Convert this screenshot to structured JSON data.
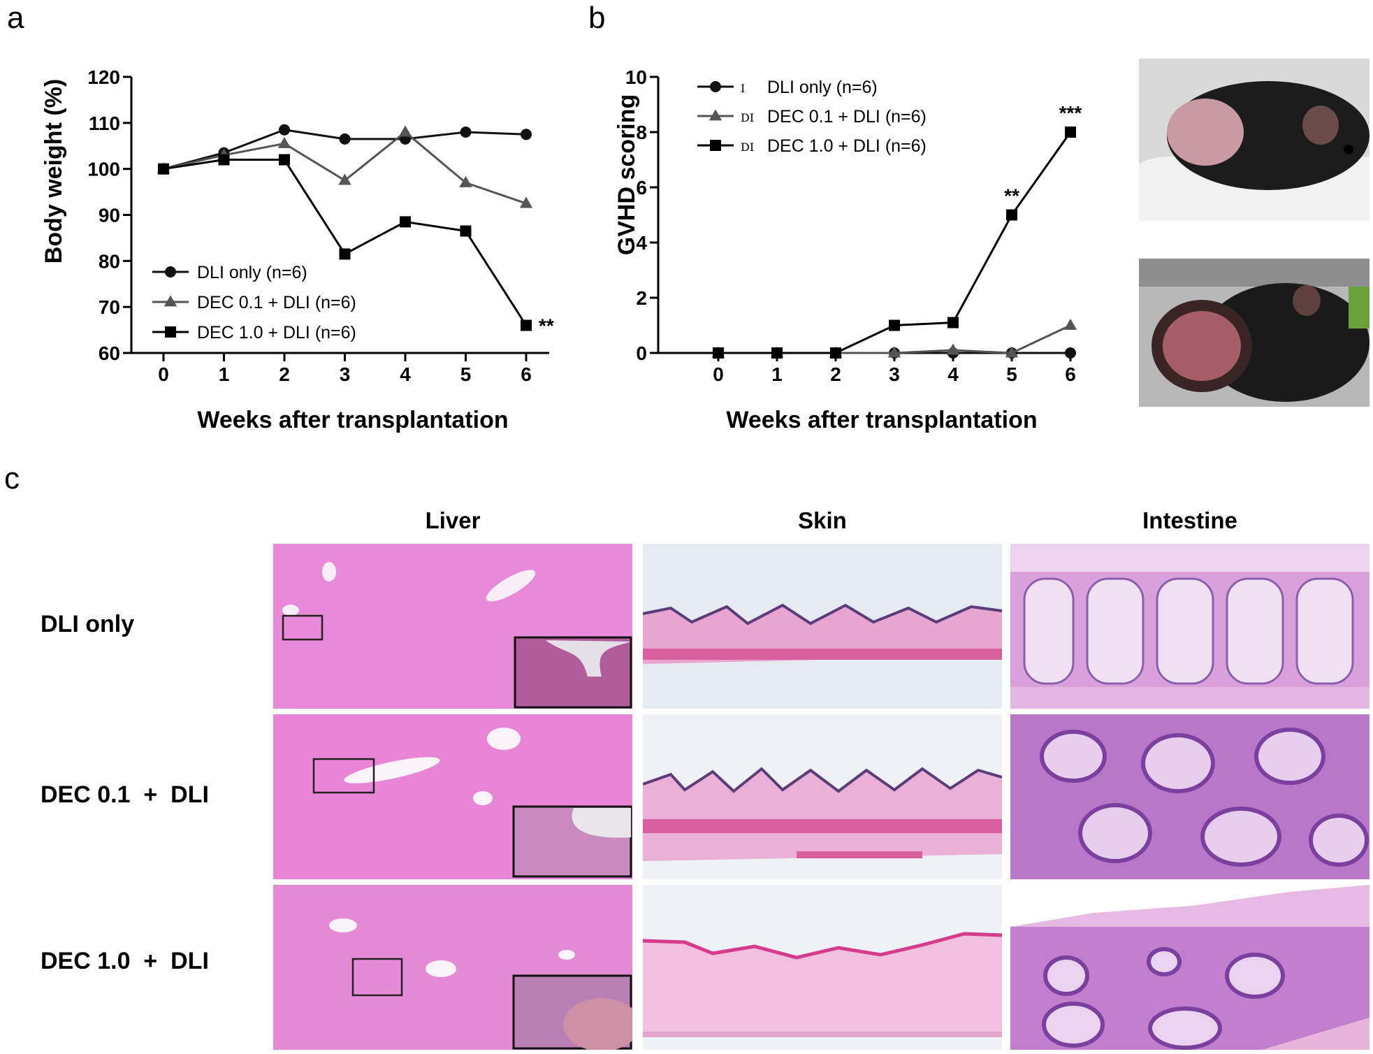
{
  "figure": {
    "panel_a_letter": "a",
    "panel_b_letter": "b",
    "panel_c_letter": "c"
  },
  "colors": {
    "dli_only": "#111111",
    "dec01": "#555555",
    "dec10": "#000000",
    "he_liver": "#e77fd6",
    "he_skin_bg": "#e6ebf2",
    "he_intestine": "#cc8fd2"
  },
  "chart_data": [
    {
      "type": "line",
      "panel": "a",
      "xlabel": "Weeks after transplantation",
      "ylabel": "Body weight (%)",
      "x": [
        0,
        1,
        2,
        3,
        4,
        5,
        6
      ],
      "ylim": [
        60,
        120
      ],
      "yticks": [
        60,
        70,
        80,
        90,
        100,
        110,
        120
      ],
      "grid": false,
      "legend_position": "bottom-left",
      "series": [
        {
          "name": "DLI only (n=6)",
          "marker": "circle",
          "values": [
            100,
            103.5,
            108.5,
            106.5,
            106.5,
            108,
            107.5
          ]
        },
        {
          "name": "DEC 0.1 + DLI (n=6)",
          "marker": "triangle",
          "values": [
            100,
            103,
            105.5,
            97.5,
            108,
            97,
            92.5
          ]
        },
        {
          "name": "DEC 1.0 + DLI (n=6)",
          "marker": "square",
          "values": [
            100,
            102,
            102,
            81.5,
            88.5,
            86.5,
            66
          ]
        }
      ],
      "annotations": [
        {
          "x": 6,
          "series": 2,
          "text": "**"
        }
      ]
    },
    {
      "type": "line",
      "panel": "b",
      "xlabel": "Weeks after transplantation",
      "ylabel": "GVHD scoring",
      "x": [
        0,
        1,
        2,
        3,
        4,
        5,
        6
      ],
      "ylim": [
        0,
        10
      ],
      "yticks": [
        0,
        2,
        4,
        6,
        8,
        10
      ],
      "grid": false,
      "legend_position": "top-left",
      "legend_glyphs": [
        "I",
        "DI",
        "DI"
      ],
      "series": [
        {
          "name": "DLI only (n=6)",
          "marker": "circle",
          "values": [
            0,
            0,
            0,
            0,
            0,
            0,
            0
          ]
        },
        {
          "name": "DEC 0.1 + DLI (n=6)",
          "marker": "triangle",
          "values": [
            0,
            0,
            0,
            0,
            0.1,
            0,
            1
          ]
        },
        {
          "name": "DEC 1.0 + DLI (n=6)",
          "marker": "square",
          "values": [
            0,
            0,
            0,
            1,
            1.1,
            5,
            8
          ]
        }
      ],
      "annotations": [
        {
          "x": 5,
          "series": 2,
          "text": "**"
        },
        {
          "x": 6,
          "series": 2,
          "text": "***"
        }
      ]
    }
  ],
  "histology": {
    "columns": [
      "Liver",
      "Skin",
      "Intestine"
    ],
    "rows": [
      "DLI only",
      "DEC 0.1  +  DLI",
      "DEC 1.0  +  DLI"
    ]
  }
}
